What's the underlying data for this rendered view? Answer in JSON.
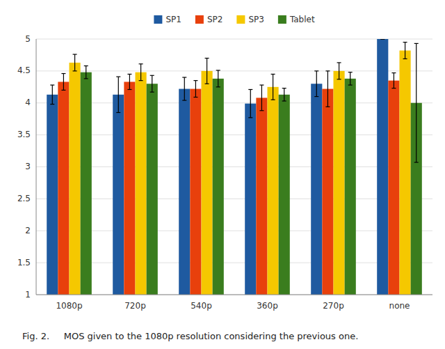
{
  "chart_data": {
    "type": "bar",
    "categories": [
      "1080p",
      "720p",
      "540p",
      "360p",
      "270p",
      "none"
    ],
    "series": [
      {
        "name": "SP1",
        "color": "#1F5AA0",
        "values": [
          4.13,
          4.13,
          4.22,
          3.99,
          4.3,
          5.0
        ],
        "errors": [
          0.15,
          0.28,
          0.18,
          0.22,
          0.2,
          0.0
        ]
      },
      {
        "name": "SP2",
        "color": "#E8400C",
        "values": [
          4.33,
          4.33,
          4.22,
          4.08,
          4.22,
          4.35
        ],
        "errors": [
          0.13,
          0.12,
          0.13,
          0.2,
          0.28,
          0.12
        ]
      },
      {
        "name": "SP3",
        "color": "#F5C800",
        "values": [
          4.63,
          4.48,
          4.5,
          4.25,
          4.5,
          4.82
        ],
        "errors": [
          0.13,
          0.13,
          0.2,
          0.2,
          0.13,
          0.13
        ]
      },
      {
        "name": "Tablet",
        "color": "#3A7D1E",
        "values": [
          4.48,
          4.3,
          4.38,
          4.13,
          4.38,
          4.0
        ],
        "errors": [
          0.1,
          0.13,
          0.13,
          0.1,
          0.1,
          0.93
        ]
      }
    ],
    "ylim": [
      1,
      5
    ],
    "yticks": [
      1,
      1.5,
      2,
      2.5,
      3,
      3.5,
      4,
      4.5,
      5
    ],
    "grid": true,
    "legend": "top",
    "annotations": [
      "Fig. 2.     MOS given to the 1080p resolution considering the previous one."
    ]
  }
}
